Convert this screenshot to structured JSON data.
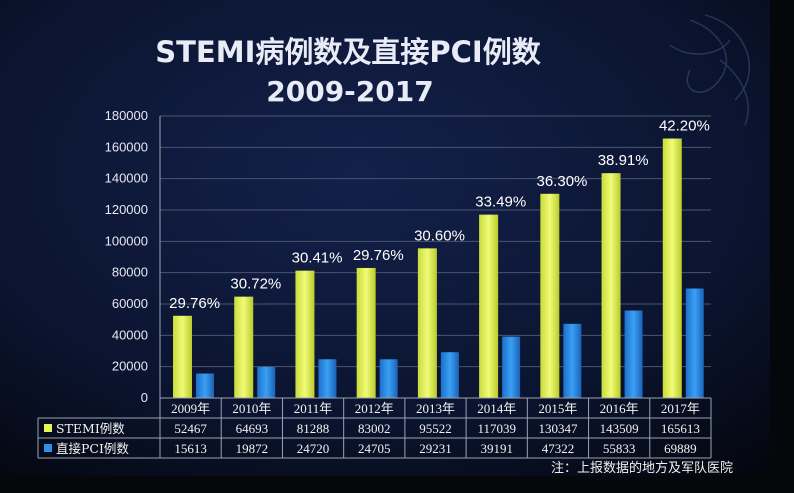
{
  "colors": {
    "stemi": "#e6f55a",
    "pci": "#2f8fe6",
    "background": "#0b1326"
  },
  "chart_data": {
    "type": "bar",
    "title": "STEMI病例数及直接PCI例数",
    "subtitle": "2009-2017",
    "categories": [
      "2009年",
      "2010年",
      "2011年",
      "2012年",
      "2013年",
      "2014年",
      "2015年",
      "2016年",
      "2017年"
    ],
    "series": [
      {
        "name": "STEMI例数",
        "values": [
          52467,
          64693,
          81288,
          83002,
          95522,
          117039,
          130347,
          143509,
          165613
        ]
      },
      {
        "name": "直接PCI例数",
        "values": [
          15613,
          19872,
          24720,
          24705,
          29231,
          39191,
          47322,
          55833,
          69889
        ]
      }
    ],
    "annotations": [
      "29.76%",
      "30.72%",
      "30.41%",
      "29.76%",
      "30.60%",
      "33.49%",
      "36.30%",
      "38.91%",
      "42.20%"
    ],
    "ylim": [
      0,
      180000
    ],
    "yticks": [
      0,
      20000,
      40000,
      60000,
      80000,
      100000,
      120000,
      140000,
      160000,
      180000
    ],
    "grid": true,
    "legend_placement": "data-table"
  },
  "note": "注：上报数据的地方及军队医院"
}
